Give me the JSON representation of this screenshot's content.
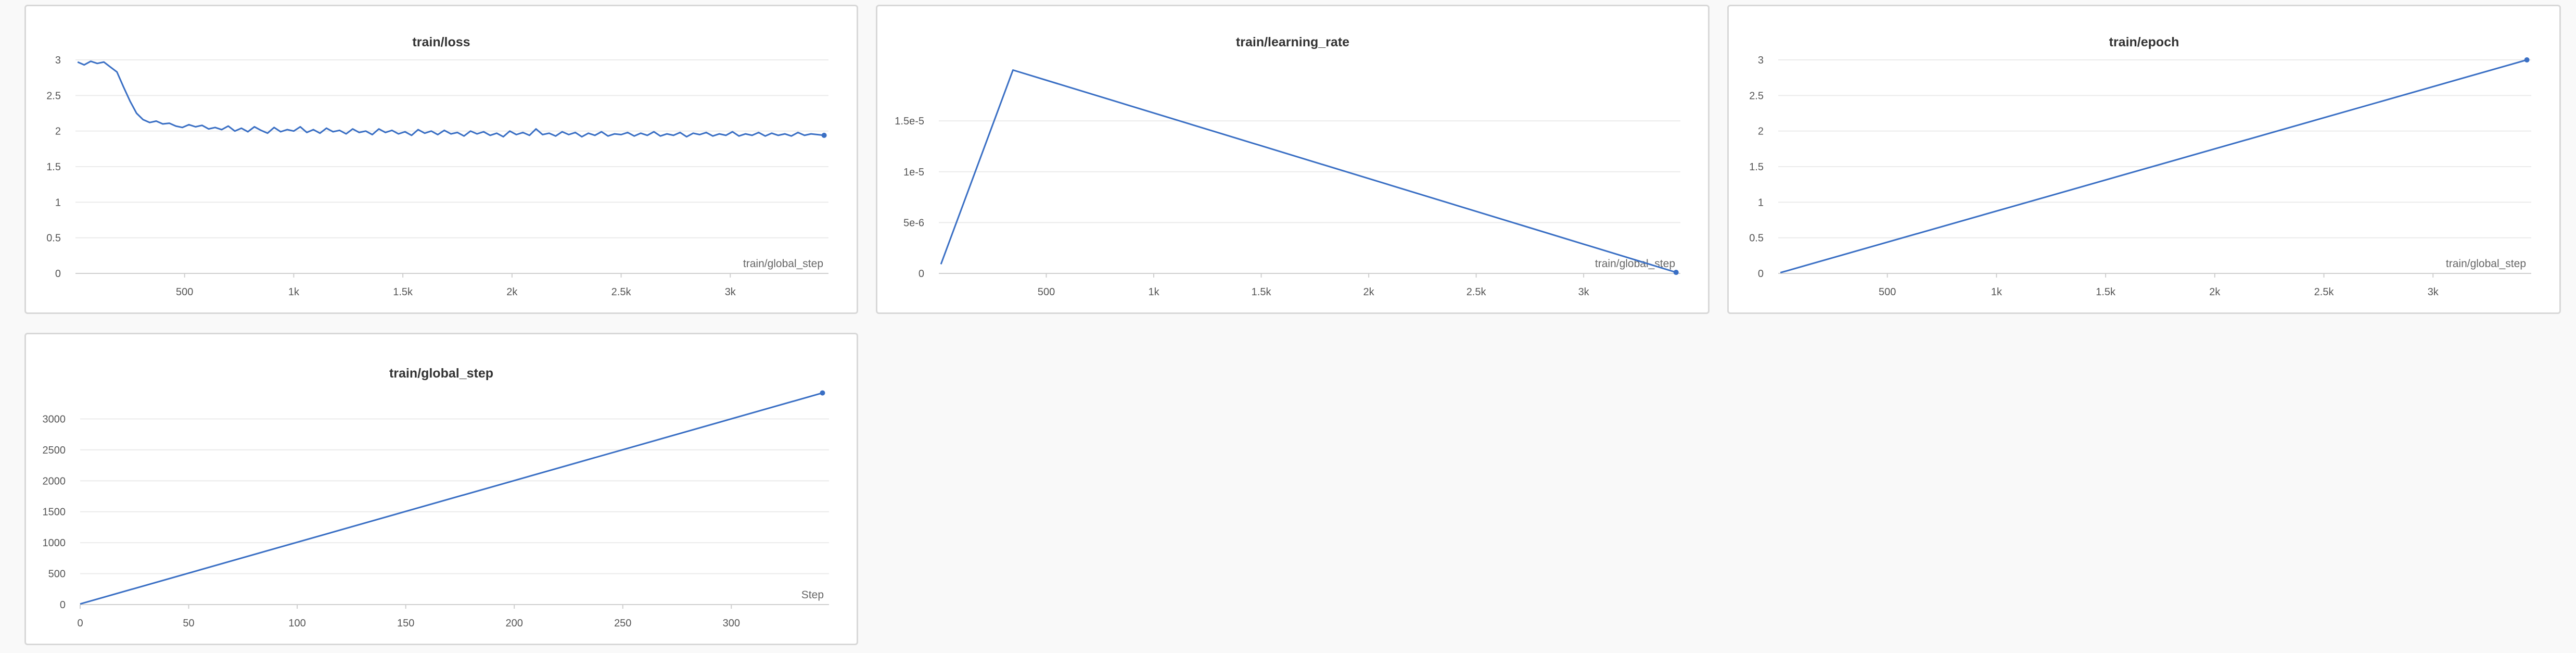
{
  "chart_data": [
    {
      "type": "line",
      "title": "train/loss",
      "xlabel": "train/global_step",
      "xlim": [
        0,
        3450
      ],
      "ylim": [
        0,
        3
      ],
      "xticks": [
        500,
        1000,
        1500,
        2000,
        2500,
        3000
      ],
      "xtick_labels": [
        "500",
        "1k",
        "1.5k",
        "2k",
        "2.5k",
        "3k"
      ],
      "yticks": [
        0,
        0.5,
        1,
        1.5,
        2,
        2.5,
        3
      ],
      "ytick_labels": [
        "0",
        "0.5",
        "1",
        "1.5",
        "2",
        "2.5",
        "3"
      ],
      "grid": true,
      "color": "#3a6fc4",
      "series": [
        {
          "x": [
            10,
            40,
            70,
            100,
            130,
            160,
            190,
            220,
            250,
            280,
            310,
            340,
            370,
            400,
            430,
            460,
            490,
            520,
            550,
            580,
            610,
            640,
            670,
            700,
            730,
            760,
            790,
            820,
            850,
            880,
            910,
            940,
            970,
            1000,
            1030,
            1060,
            1090,
            1120,
            1150,
            1180,
            1210,
            1240,
            1270,
            1300,
            1330,
            1360,
            1390,
            1420,
            1450,
            1480,
            1510,
            1540,
            1570,
            1600,
            1630,
            1660,
            1690,
            1720,
            1750,
            1780,
            1810,
            1840,
            1870,
            1900,
            1930,
            1960,
            1990,
            2020,
            2050,
            2080,
            2110,
            2140,
            2170,
            2200,
            2230,
            2260,
            2290,
            2320,
            2350,
            2380,
            2410,
            2440,
            2470,
            2500,
            2530,
            2560,
            2590,
            2620,
            2650,
            2680,
            2710,
            2740,
            2770,
            2800,
            2830,
            2860,
            2890,
            2920,
            2950,
            2980,
            3010,
            3040,
            3070,
            3100,
            3130,
            3160,
            3190,
            3220,
            3250,
            3280,
            3310,
            3340,
            3370,
            3400,
            3430
          ],
          "y": [
            2.97,
            2.93,
            2.98,
            2.95,
            2.97,
            2.9,
            2.83,
            2.62,
            2.42,
            2.25,
            2.16,
            2.12,
            2.14,
            2.1,
            2.11,
            2.07,
            2.05,
            2.09,
            2.06,
            2.08,
            2.03,
            2.05,
            2.02,
            2.07,
            2.0,
            2.04,
            1.99,
            2.06,
            2.01,
            1.97,
            2.05,
            1.99,
            2.02,
            2.0,
            2.06,
            1.98,
            2.02,
            1.97,
            2.04,
            1.99,
            2.01,
            1.96,
            2.03,
            1.98,
            2.0,
            1.95,
            2.03,
            1.98,
            2.01,
            1.96,
            1.99,
            1.94,
            2.02,
            1.97,
            2.0,
            1.95,
            2.01,
            1.96,
            1.98,
            1.93,
            2.0,
            1.96,
            1.99,
            1.94,
            1.97,
            1.92,
            2.0,
            1.95,
            1.98,
            1.94,
            2.03,
            1.95,
            1.97,
            1.93,
            1.99,
            1.95,
            1.98,
            1.92,
            1.97,
            1.94,
            1.99,
            1.93,
            1.96,
            1.95,
            1.98,
            1.93,
            1.97,
            1.94,
            1.99,
            1.93,
            1.96,
            1.94,
            1.98,
            1.92,
            1.97,
            1.95,
            1.98,
            1.93,
            1.96,
            1.94,
            1.99,
            1.93,
            1.96,
            1.94,
            1.98,
            1.93,
            1.97,
            1.94,
            1.96,
            1.93,
            1.98,
            1.94,
            1.96,
            1.95,
            1.94
          ]
        }
      ]
    },
    {
      "type": "line",
      "title": "train/learning_rate",
      "xlabel": "train/global_step",
      "xlim": [
        0,
        3450
      ],
      "ylim": [
        0,
        2.1e-05
      ],
      "xticks": [
        500,
        1000,
        1500,
        2000,
        2500,
        3000
      ],
      "xtick_labels": [
        "500",
        "1k",
        "1.5k",
        "2k",
        "2.5k",
        "3k"
      ],
      "yticks": [
        0,
        5e-06,
        1e-05,
        1.5e-05
      ],
      "ytick_labels": [
        "0",
        "5e-6",
        "1e-5",
        "1.5e-5"
      ],
      "grid": true,
      "color": "#3a6fc4",
      "series": [
        {
          "x": [
            10,
            345,
            3430
          ],
          "y": [
            9e-07,
            2e-05,
            1e-07
          ]
        }
      ]
    },
    {
      "type": "line",
      "title": "train/epoch",
      "xlabel": "train/global_step",
      "xlim": [
        0,
        3450
      ],
      "ylim": [
        0,
        3
      ],
      "xticks": [
        500,
        1000,
        1500,
        2000,
        2500,
        3000
      ],
      "xtick_labels": [
        "500",
        "1k",
        "1.5k",
        "2k",
        "2.5k",
        "3k"
      ],
      "yticks": [
        0,
        0.5,
        1,
        1.5,
        2,
        2.5,
        3
      ],
      "ytick_labels": [
        "0",
        "0.5",
        "1",
        "1.5",
        "2",
        "2.5",
        "3"
      ],
      "grid": true,
      "color": "#3a6fc4",
      "series": [
        {
          "x": [
            10,
            3430
          ],
          "y": [
            0.01,
            3.0
          ]
        }
      ]
    },
    {
      "type": "line",
      "title": "train/global_step",
      "xlabel": "Step",
      "xlim": [
        0,
        345
      ],
      "ylim": [
        0,
        3450
      ],
      "xticks": [
        0,
        50,
        100,
        150,
        200,
        250,
        300
      ],
      "xtick_labels": [
        "0",
        "50",
        "100",
        "150",
        "200",
        "250",
        "300"
      ],
      "yticks": [
        0,
        500,
        1000,
        1500,
        2000,
        2500,
        3000
      ],
      "ytick_labels": [
        "0",
        "500",
        "1000",
        "1500",
        "2000",
        "2500",
        "3000"
      ],
      "grid": true,
      "color": "#3a6fc4",
      "series": [
        {
          "x": [
            0,
            342
          ],
          "y": [
            10,
            3420
          ]
        }
      ]
    }
  ]
}
